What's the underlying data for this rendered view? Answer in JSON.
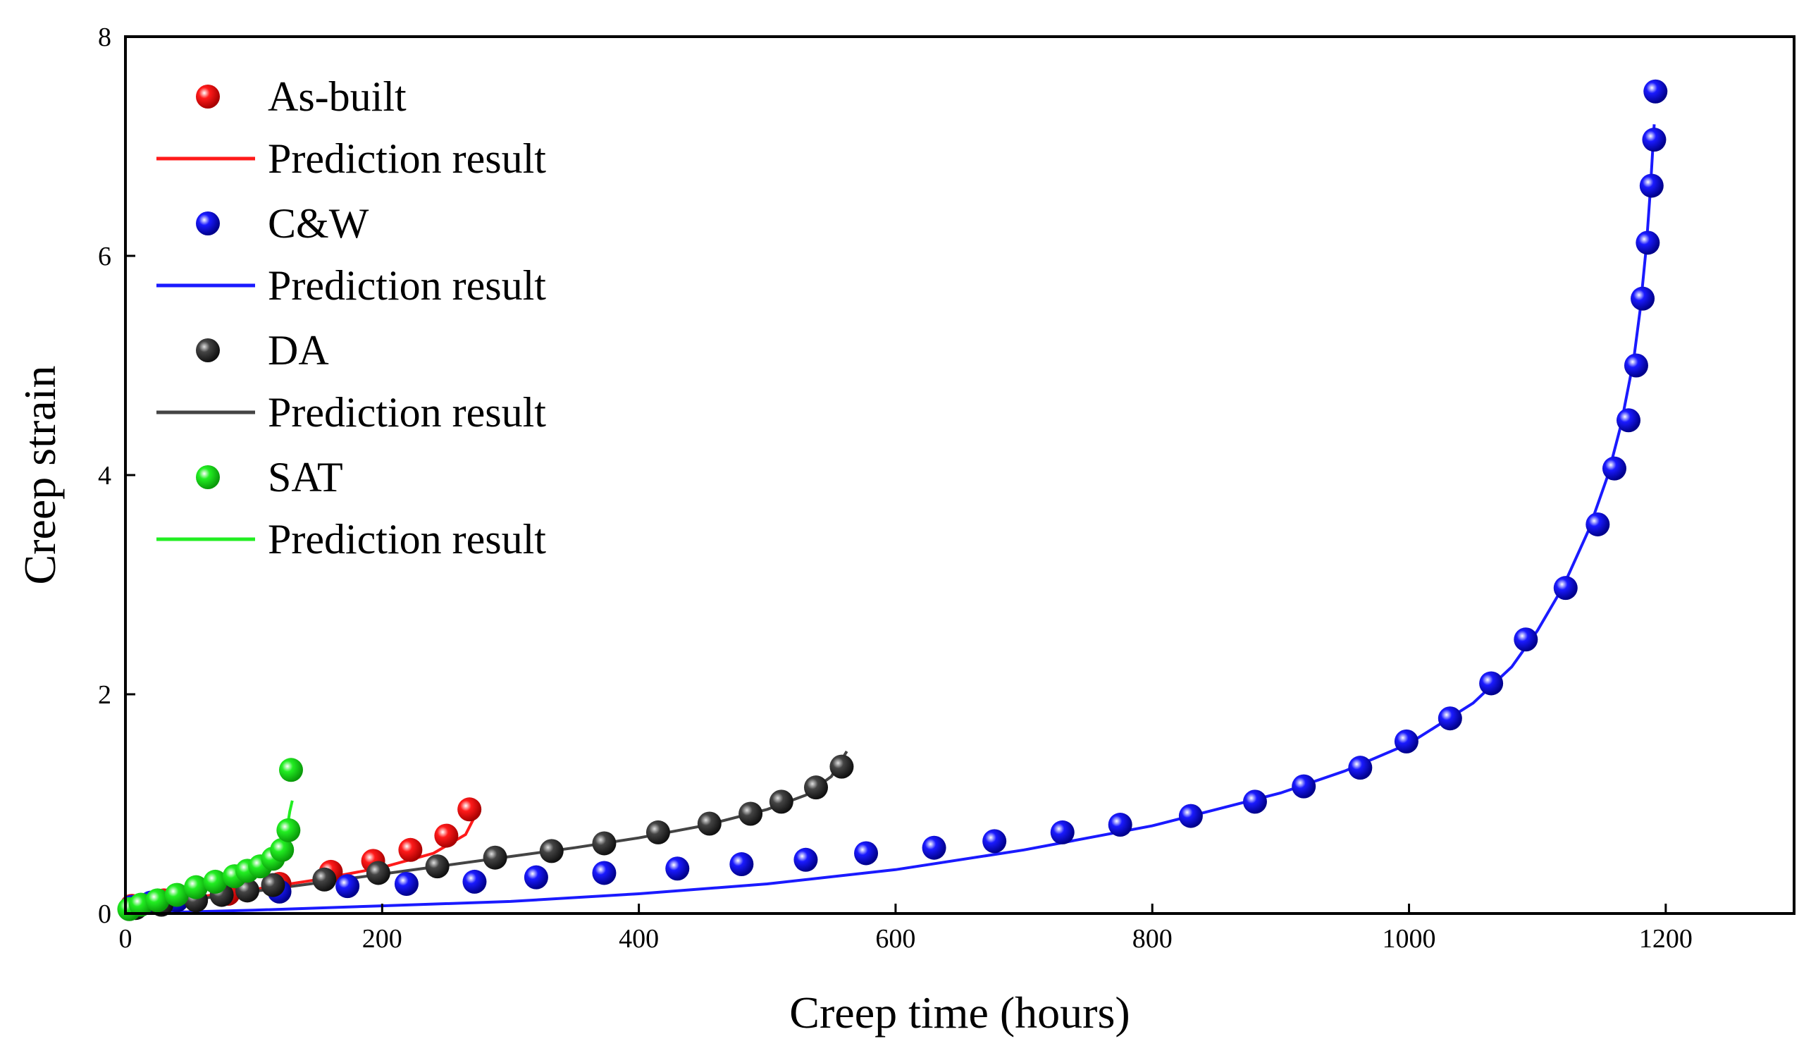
{
  "chart_data": {
    "type": "scatter",
    "title": "",
    "xlabel": "Creep time (hours)",
    "ylabel": "Creep strain",
    "xlim": [
      0,
      1300
    ],
    "ylim": [
      0,
      8
    ],
    "xticks": [
      "0",
      "200",
      "400",
      "600",
      "800",
      "1000",
      "1200"
    ],
    "yticks": [
      "0",
      "2",
      "4",
      "6",
      "8"
    ],
    "grid": false,
    "legend_position": "top-left",
    "series": [
      {
        "name": "As-built",
        "color": "#ff1a1a",
        "points": [
          [
            5,
            0.07
          ],
          [
            30,
            0.12
          ],
          [
            80,
            0.18
          ],
          [
            120,
            0.27
          ],
          [
            160,
            0.38
          ],
          [
            193,
            0.48
          ],
          [
            222,
            0.58
          ],
          [
            250,
            0.71
          ],
          [
            268,
            0.95
          ]
        ],
        "line_name": "Prediction result",
        "line": [
          [
            0,
            0.0
          ],
          [
            20,
            0.09
          ],
          [
            50,
            0.14
          ],
          [
            100,
            0.22
          ],
          [
            150,
            0.31
          ],
          [
            200,
            0.42
          ],
          [
            240,
            0.55
          ],
          [
            265,
            0.72
          ],
          [
            275,
            0.95
          ]
        ]
      },
      {
        "name": "C&W",
        "color": "#1a1aff",
        "points": [
          [
            5,
            0.06
          ],
          [
            20,
            0.1
          ],
          [
            40,
            0.12
          ],
          [
            120,
            0.2
          ],
          [
            173,
            0.25
          ],
          [
            219,
            0.27
          ],
          [
            272,
            0.29
          ],
          [
            320,
            0.33
          ],
          [
            373,
            0.37
          ],
          [
            430,
            0.41
          ],
          [
            480,
            0.45
          ],
          [
            530,
            0.49
          ],
          [
            577,
            0.55
          ],
          [
            630,
            0.6
          ],
          [
            677,
            0.66
          ],
          [
            730,
            0.74
          ],
          [
            775,
            0.81
          ],
          [
            830,
            0.89
          ],
          [
            880,
            1.02
          ],
          [
            918,
            1.16
          ],
          [
            962,
            1.33
          ],
          [
            998,
            1.57
          ],
          [
            1032,
            1.78
          ],
          [
            1064,
            2.1
          ],
          [
            1091,
            2.5
          ],
          [
            1122,
            2.97
          ],
          [
            1147,
            3.55
          ],
          [
            1160,
            4.06
          ],
          [
            1171,
            4.5
          ],
          [
            1177,
            5.0
          ],
          [
            1182,
            5.61
          ],
          [
            1186,
            6.12
          ],
          [
            1189,
            6.64
          ],
          [
            1191,
            7.06
          ],
          [
            1192,
            7.5
          ]
        ],
        "line_name": "Prediction result",
        "line": [
          [
            0,
            0.0
          ],
          [
            100,
            0.03
          ],
          [
            200,
            0.07
          ],
          [
            300,
            0.11
          ],
          [
            400,
            0.18
          ],
          [
            500,
            0.27
          ],
          [
            600,
            0.4
          ],
          [
            700,
            0.58
          ],
          [
            800,
            0.8
          ],
          [
            900,
            1.1
          ],
          [
            950,
            1.3
          ],
          [
            1000,
            1.55
          ],
          [
            1050,
            1.92
          ],
          [
            1080,
            2.25
          ],
          [
            1100,
            2.58
          ],
          [
            1120,
            2.98
          ],
          [
            1140,
            3.5
          ],
          [
            1155,
            4.0
          ],
          [
            1165,
            4.45
          ],
          [
            1175,
            5.05
          ],
          [
            1180,
            5.5
          ],
          [
            1185,
            6.1
          ],
          [
            1188,
            6.6
          ],
          [
            1191,
            7.2
          ]
        ]
      },
      {
        "name": "DA",
        "color": "#444444",
        "points": [
          [
            8,
            0.05
          ],
          [
            28,
            0.08
          ],
          [
            55,
            0.12
          ],
          [
            75,
            0.17
          ],
          [
            95,
            0.21
          ],
          [
            115,
            0.26
          ],
          [
            155,
            0.31
          ],
          [
            197,
            0.37
          ],
          [
            243,
            0.43
          ],
          [
            288,
            0.51
          ],
          [
            332,
            0.57
          ],
          [
            373,
            0.64
          ],
          [
            415,
            0.74
          ],
          [
            455,
            0.82
          ],
          [
            487,
            0.91
          ],
          [
            511,
            1.02
          ],
          [
            538,
            1.15
          ],
          [
            558,
            1.34
          ]
        ],
        "line_name": "Prediction result",
        "line": [
          [
            0,
            0.0
          ],
          [
            30,
            0.09
          ],
          [
            80,
            0.17
          ],
          [
            150,
            0.28
          ],
          [
            200,
            0.36
          ],
          [
            250,
            0.44
          ],
          [
            300,
            0.52
          ],
          [
            350,
            0.6
          ],
          [
            400,
            0.69
          ],
          [
            450,
            0.8
          ],
          [
            500,
            0.95
          ],
          [
            530,
            1.08
          ],
          [
            550,
            1.25
          ],
          [
            562,
            1.48
          ]
        ]
      },
      {
        "name": "SAT",
        "color": "#22ee22",
        "points": [
          [
            3,
            0.04
          ],
          [
            12,
            0.08
          ],
          [
            25,
            0.12
          ],
          [
            40,
            0.17
          ],
          [
            55,
            0.24
          ],
          [
            70,
            0.29
          ],
          [
            85,
            0.34
          ],
          [
            95,
            0.39
          ],
          [
            105,
            0.43
          ],
          [
            115,
            0.5
          ],
          [
            122,
            0.58
          ],
          [
            127,
            0.76
          ],
          [
            129,
            1.31
          ]
        ],
        "line_name": "Prediction result",
        "line": [
          [
            0,
            0.0
          ],
          [
            20,
            0.11
          ],
          [
            45,
            0.19
          ],
          [
            70,
            0.28
          ],
          [
            90,
            0.36
          ],
          [
            105,
            0.44
          ],
          [
            115,
            0.53
          ],
          [
            122,
            0.63
          ],
          [
            126,
            0.78
          ],
          [
            128,
            0.93
          ],
          [
            130,
            1.03
          ]
        ]
      }
    ]
  }
}
